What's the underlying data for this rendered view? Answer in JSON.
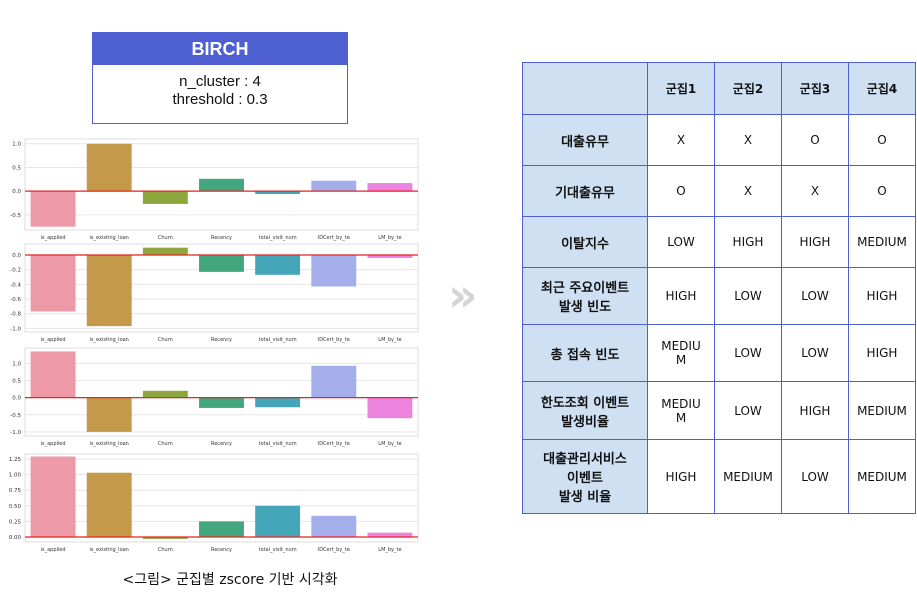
{
  "birch_box": {
    "title": "BIRCH",
    "line1": "n_cluster : 4",
    "line2": "threshold : 0.3"
  },
  "caption": "<그림> 군집별 zscore 기반 시각화",
  "arrow_glyph": "»",
  "chart_data": [
    {
      "type": "bar",
      "categories": [
        "is_applied",
        "is_existing_loan",
        "Churn",
        "Recency",
        "total_visit_num",
        "IDCert_by_te",
        "LM_by_te"
      ],
      "values": [
        -0.75,
        1.0,
        -0.27,
        0.26,
        -0.06,
        0.22,
        0.17
      ],
      "ylim": [
        -0.82,
        1.1
      ],
      "yticks": [
        1.0,
        0.5,
        0.0,
        -0.5
      ],
      "ytick_labels": [
        "1.0",
        "0.5",
        "0.0",
        "-0.5"
      ],
      "colors": [
        "#ee9aa6",
        "#c49a4a",
        "#8da63e",
        "#42a77f",
        "#45a6b9",
        "#a3aeea",
        "#ec84df"
      ],
      "reference_line": 0
    },
    {
      "type": "bar",
      "categories": [
        "is_applied",
        "is_existing_loan",
        "Churn",
        "Recency",
        "total_visit_num",
        "IDCert_by_te",
        "LM_by_te"
      ],
      "values": [
        -0.77,
        -0.97,
        0.1,
        -0.23,
        -0.27,
        -0.43,
        -0.04
      ],
      "ylim": [
        -1.05,
        0.15
      ],
      "yticks": [
        0.0,
        -0.2,
        -0.4,
        -0.6,
        -0.8,
        -1.0
      ],
      "ytick_labels": [
        "0.0",
        "-0.2",
        "-0.4",
        "-0.6",
        "-0.8",
        "-1.0"
      ],
      "colors": [
        "#ee9aa6",
        "#c49a4a",
        "#8da63e",
        "#42a77f",
        "#45a6b9",
        "#a3aeea",
        "#ec84df"
      ],
      "reference_line": 0
    },
    {
      "type": "bar",
      "categories": [
        "is_applied",
        "is_existing_loan",
        "Churn",
        "Recency",
        "total_visit_num",
        "IDCert_by_te",
        "LM_by_te"
      ],
      "values": [
        1.35,
        -1.0,
        0.2,
        -0.3,
        -0.28,
        0.93,
        -0.6
      ],
      "ylim": [
        -1.12,
        1.45
      ],
      "yticks": [
        1.0,
        0.5,
        0.0,
        -0.5,
        -1.0
      ],
      "ytick_labels": [
        "1.0",
        "0.5",
        "0.0",
        "-0.5",
        "-1.0"
      ],
      "colors": [
        "#ee9aa6",
        "#c49a4a",
        "#8da63e",
        "#42a77f",
        "#45a6b9",
        "#a3aeea",
        "#ec84df"
      ],
      "reference_line": 0
    },
    {
      "type": "bar",
      "categories": [
        "is_applied",
        "is_existing_loan",
        "Churn",
        "Recency",
        "total_visit_num",
        "IDCert_by_te",
        "LM_by_te"
      ],
      "values": [
        1.29,
        1.03,
        -0.03,
        0.25,
        0.5,
        0.34,
        0.07
      ],
      "ylim": [
        -0.08,
        1.33
      ],
      "yticks": [
        1.25,
        1.0,
        0.75,
        0.5,
        0.25,
        0.0
      ],
      "ytick_labels": [
        "1.25",
        "1.00",
        "0.75",
        "0.50",
        "0.25",
        "0.00"
      ],
      "colors": [
        "#ee9aa6",
        "#c49a4a",
        "#8da63e",
        "#42a77f",
        "#45a6b9",
        "#a3aeea",
        "#ec84df"
      ],
      "reference_line": 0
    }
  ],
  "table": {
    "headers": [
      "군집1",
      "군집2",
      "군집3",
      "군집4"
    ],
    "rows": [
      {
        "label": [
          "대출유무"
        ],
        "cells": [
          [
            "X"
          ],
          [
            "X"
          ],
          [
            "O"
          ],
          [
            "O"
          ]
        ]
      },
      {
        "label": [
          "기대출유무"
        ],
        "cells": [
          [
            "O"
          ],
          [
            "X"
          ],
          [
            "X"
          ],
          [
            "O"
          ]
        ]
      },
      {
        "label": [
          "이탈지수"
        ],
        "cells": [
          [
            "LOW"
          ],
          [
            "HIGH"
          ],
          [
            "HIGH"
          ],
          [
            "MEDIUM"
          ]
        ]
      },
      {
        "label": [
          "최근 주요이벤트",
          "발생 빈도"
        ],
        "cells": [
          [
            "HIGH"
          ],
          [
            "LOW"
          ],
          [
            "LOW"
          ],
          [
            "HIGH"
          ]
        ]
      },
      {
        "label": [
          "총 접속 빈도"
        ],
        "cells": [
          [
            "MEDIU",
            "M"
          ],
          [
            "LOW"
          ],
          [
            "LOW"
          ],
          [
            "HIGH"
          ]
        ]
      },
      {
        "label": [
          "한도조회 이벤트",
          "발생비율"
        ],
        "cells": [
          [
            "MEDIU",
            "M"
          ],
          [
            "LOW"
          ],
          [
            "HIGH"
          ],
          [
            "MEDIUM"
          ]
        ]
      },
      {
        "label": [
          "대출관리서비스",
          "이벤트",
          "발생 비율"
        ],
        "cells": [
          [
            "HIGH"
          ],
          [
            "MEDIUM"
          ],
          [
            "LOW"
          ],
          [
            "MEDIUM"
          ]
        ]
      }
    ]
  }
}
